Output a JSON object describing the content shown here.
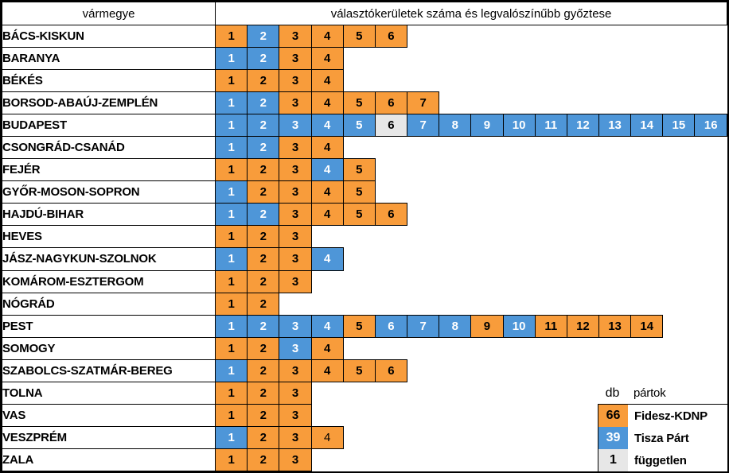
{
  "title_row": {
    "varmegye": "vármegye",
    "districts_title": "választókerületek száma és legvalószínűbb győztese"
  },
  "colors": {
    "fidesz": "#F89C3B",
    "tisza": "#4E96D8",
    "fuggetlen": "#E7E7E7",
    "border": "#000000"
  },
  "party_names": {
    "fidesz": "Fidesz-KDNP",
    "tisza": "Tisza Párt",
    "fuggetlen": "független"
  },
  "legend": {
    "db_label": "db",
    "partok_label": "pártok",
    "rows": [
      {
        "party": "fidesz",
        "count": "66"
      },
      {
        "party": "tisza",
        "count": "39"
      },
      {
        "party": "fuggetlen",
        "count": "1"
      }
    ]
  },
  "chart_data": {
    "type": "table",
    "title": "választókerületek száma és legvalószínűbb győztese",
    "row_header": "vármegye",
    "max_districts": 16,
    "legend_counts": {
      "Fidesz-KDNP": 66,
      "Tisza Párt": 39,
      "független": 1
    },
    "rows": [
      {
        "county": "BÁCS-KISKUN",
        "winners": [
          "fidesz",
          "tisza",
          "fidesz",
          "fidesz",
          "fidesz",
          "fidesz"
        ]
      },
      {
        "county": "BARANYA",
        "winners": [
          "tisza",
          "tisza",
          "fidesz",
          "fidesz"
        ]
      },
      {
        "county": "BÉKÉS",
        "winners": [
          "fidesz",
          "fidesz",
          "fidesz",
          "fidesz"
        ]
      },
      {
        "county": "BORSOD-ABAÚJ-ZEMPLÉN",
        "winners": [
          "tisza",
          "tisza",
          "fidesz",
          "fidesz",
          "fidesz",
          "fidesz",
          "fidesz"
        ]
      },
      {
        "county": "BUDAPEST",
        "winners": [
          "tisza",
          "tisza",
          "tisza",
          "tisza",
          "tisza",
          "fuggetlen",
          "tisza",
          "tisza",
          "tisza",
          "tisza",
          "tisza",
          "tisza",
          "tisza",
          "tisza",
          "tisza",
          "tisza"
        ]
      },
      {
        "county": "CSONGRÁD-CSANÁD",
        "winners": [
          "tisza",
          "tisza",
          "fidesz",
          "fidesz"
        ]
      },
      {
        "county": "FEJÉR",
        "winners": [
          "fidesz",
          "fidesz",
          "fidesz",
          "tisza",
          "fidesz"
        ]
      },
      {
        "county": "GYŐR-MOSON-SOPRON",
        "winners": [
          "tisza",
          "fidesz",
          "fidesz",
          "fidesz",
          "fidesz"
        ]
      },
      {
        "county": "HAJDÚ-BIHAR",
        "winners": [
          "tisza",
          "tisza",
          "fidesz",
          "fidesz",
          "fidesz",
          "fidesz"
        ]
      },
      {
        "county": "HEVES",
        "winners": [
          "fidesz",
          "fidesz",
          "fidesz"
        ]
      },
      {
        "county": "JÁSZ-NAGYKUN-SZOLNOK",
        "winners": [
          "tisza",
          "fidesz",
          "fidesz",
          "tisza"
        ]
      },
      {
        "county": "KOMÁROM-ESZTERGOM",
        "winners": [
          "fidesz",
          "fidesz",
          "fidesz"
        ]
      },
      {
        "county": "NÓGRÁD",
        "winners": [
          "fidesz",
          "fidesz"
        ]
      },
      {
        "county": "PEST",
        "winners": [
          "tisza",
          "tisza",
          "tisza",
          "tisza",
          "fidesz",
          "tisza",
          "tisza",
          "tisza",
          "fidesz",
          "tisza",
          "fidesz",
          "fidesz",
          "fidesz",
          "fidesz"
        ]
      },
      {
        "county": "SOMOGY",
        "winners": [
          "fidesz",
          "fidesz",
          "tisza",
          "fidesz"
        ]
      },
      {
        "county": "SZABOLCS-SZATMÁR-BEREG",
        "winners": [
          "tisza",
          "fidesz",
          "fidesz",
          "fidesz",
          "fidesz",
          "fidesz"
        ]
      },
      {
        "county": "TOLNA",
        "winners": [
          "fidesz",
          "fidesz",
          "fidesz"
        ]
      },
      {
        "county": "VAS",
        "winners": [
          "fidesz",
          "fidesz",
          "fidesz"
        ]
      },
      {
        "county": "VESZPRÉM",
        "winners": [
          "tisza",
          "fidesz",
          "fidesz",
          "fidesz"
        ],
        "light_districts": [
          4
        ]
      },
      {
        "county": "ZALA",
        "winners": [
          "fidesz",
          "fidesz",
          "fidesz"
        ]
      }
    ]
  }
}
